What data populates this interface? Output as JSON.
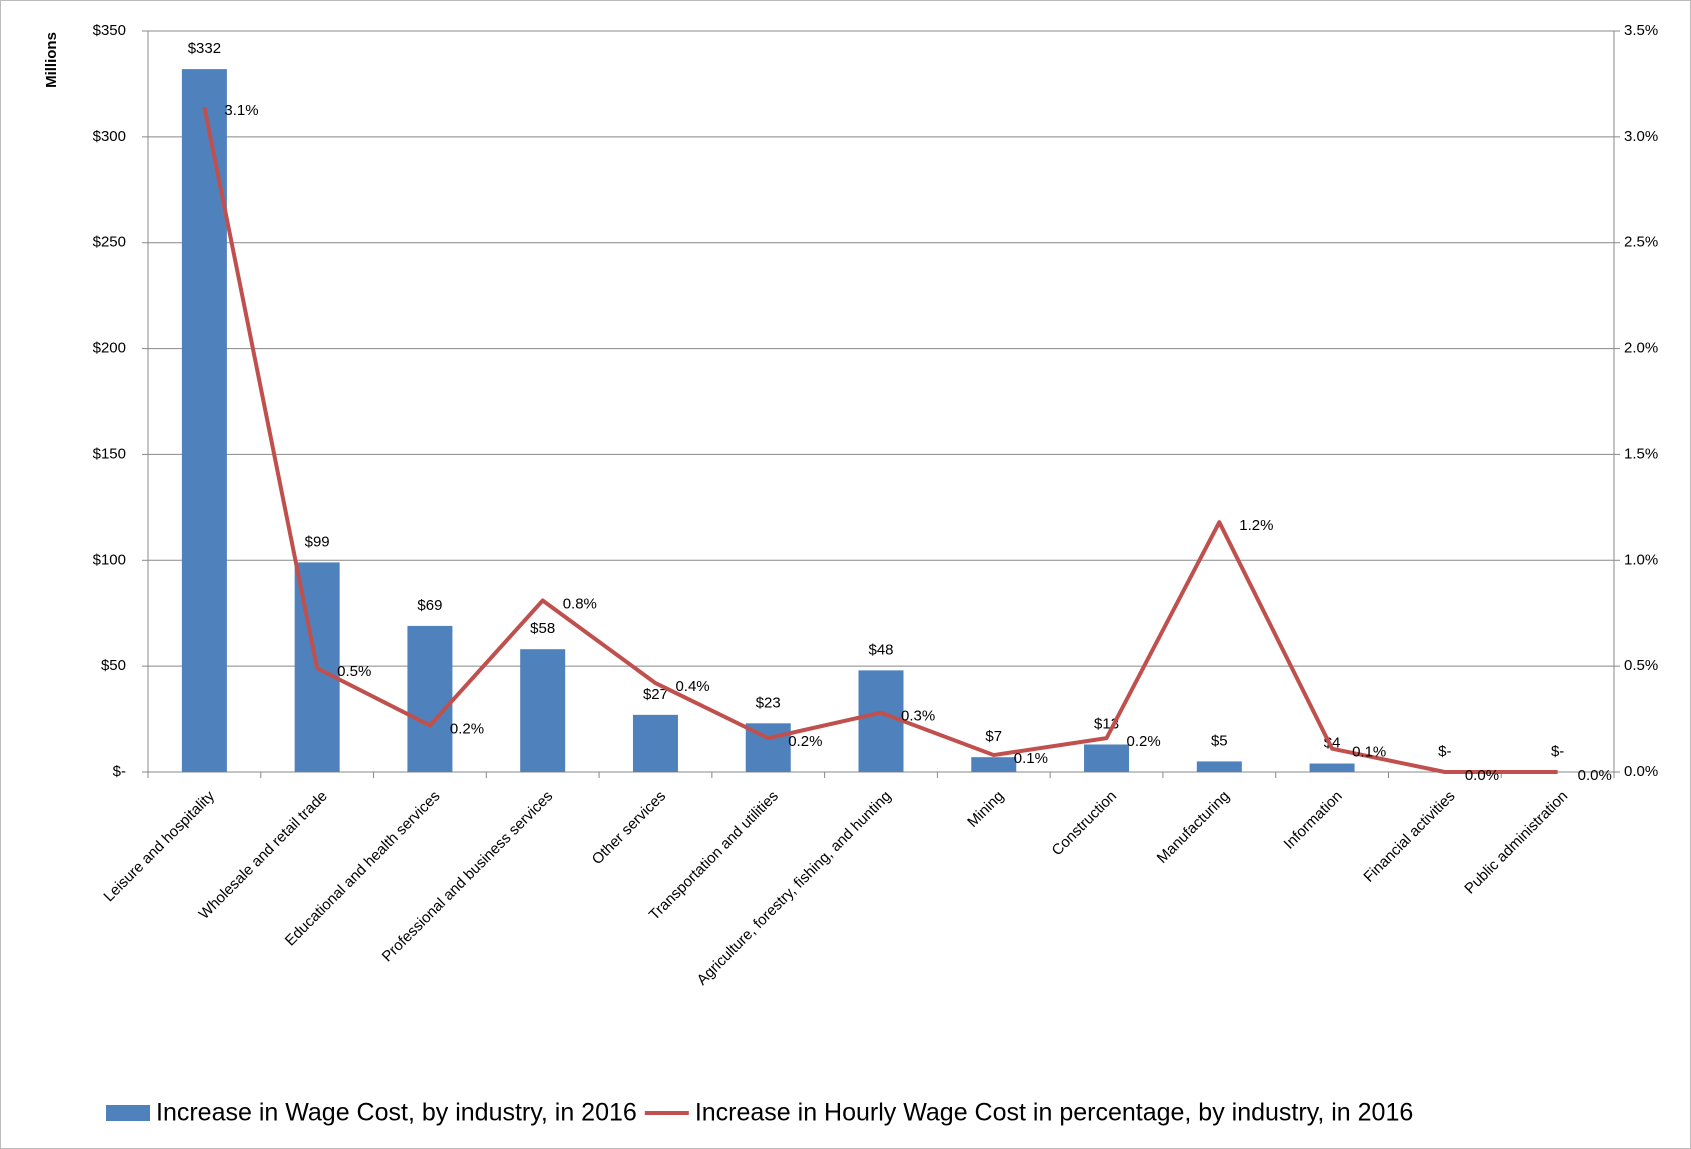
{
  "chart_data": {
    "type": "bar_line",
    "y_label": "Millions",
    "categories": [
      "Leisure and hospitality",
      "Wholesale and retail trade",
      "Educational and health services",
      "Professional and business services",
      "Other services",
      "Transportation and utilities",
      "Agriculture, forestry, fishing, and hunting",
      "Mining",
      "Construction",
      "Manufacturing",
      "Information",
      "Financial activities",
      "Public administration"
    ],
    "series": [
      {
        "name": "Increase in Wage Cost, by industry, in 2016",
        "type": "bar",
        "color": "#4f81bd",
        "values": [
          332,
          99,
          69,
          58,
          27,
          23,
          48,
          7,
          13,
          5,
          4,
          0,
          0
        ],
        "value_labels": [
          "$332",
          "$99",
          "$69",
          "$58",
          "$27",
          "$23",
          "$48",
          "$7",
          "$13",
          "$5",
          "$4",
          "$-",
          "$-"
        ]
      },
      {
        "name": "Increase in Hourly Wage Cost in percentage, by industry, in 2016",
        "type": "line",
        "axis": "y2",
        "color": "#c0504d",
        "values": [
          3.14,
          0.49,
          0.22,
          0.81,
          0.42,
          0.16,
          0.28,
          0.08,
          0.16,
          1.18,
          0.11,
          0.0,
          0.0
        ],
        "value_labels": [
          "3.1%",
          "0.5%",
          "0.2%",
          "0.8%",
          "0.4%",
          "0.2%",
          "0.3%",
          "0.1%",
          "0.2%",
          "1.2%",
          "0.1%",
          "0.0%",
          "0.0%"
        ]
      }
    ],
    "ylim": [
      0,
      350
    ],
    "yticks": [
      {
        "value": 0,
        "label": "$-"
      },
      {
        "value": 50,
        "label": "$50"
      },
      {
        "value": 100,
        "label": "$100"
      },
      {
        "value": 150,
        "label": "$150"
      },
      {
        "value": 200,
        "label": "$200"
      },
      {
        "value": 250,
        "label": "$250"
      },
      {
        "value": 300,
        "label": "$300"
      },
      {
        "value": 350,
        "label": "$350"
      }
    ],
    "y2lim": [
      0,
      3.5
    ],
    "y2ticks": [
      {
        "value": 0,
        "label": "0.0%"
      },
      {
        "value": 0.5,
        "label": "0.5%"
      },
      {
        "value": 1.0,
        "label": "1.0%"
      },
      {
        "value": 1.5,
        "label": "1.5%"
      },
      {
        "value": 2.0,
        "label": "2.0%"
      },
      {
        "value": 2.5,
        "label": "2.5%"
      },
      {
        "value": 3.0,
        "label": "3.0%"
      },
      {
        "value": 3.5,
        "label": "3.5%"
      }
    ],
    "grid": true,
    "legend": "bottom"
  }
}
